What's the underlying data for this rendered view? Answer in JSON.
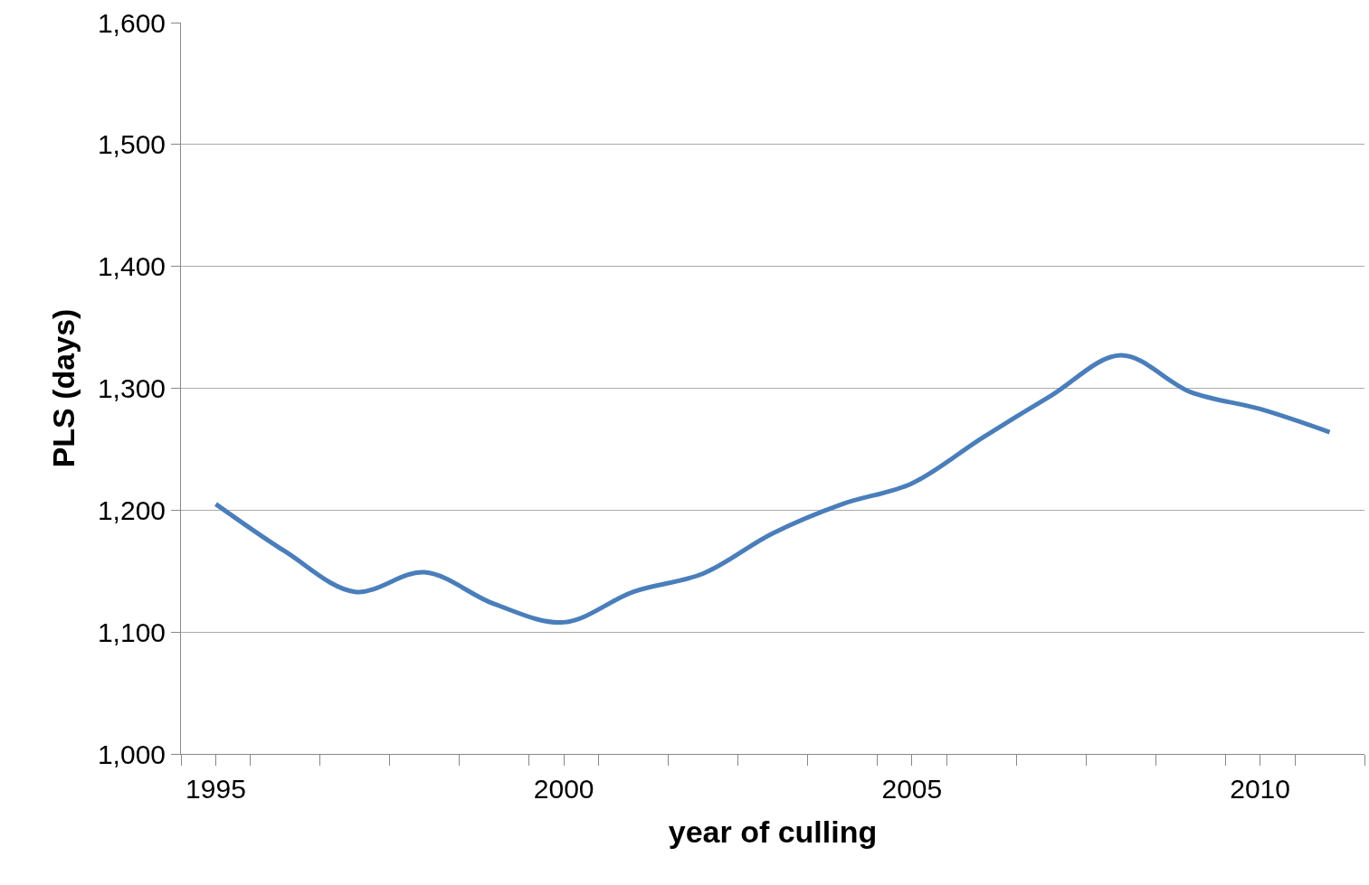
{
  "chart_data": {
    "type": "line",
    "xlabel": "year of culling",
    "ylabel": "PLS (days)",
    "x": [
      1995,
      1996,
      1997,
      1998,
      1999,
      2000,
      2001,
      2002,
      2003,
      2004,
      2005,
      2006,
      2007,
      2008,
      2009,
      2010,
      2011
    ],
    "series": [
      {
        "color": "#4a7ebb",
        "values": [
          1205,
          1166,
          1133,
          1149,
          1123,
          1108,
          1133,
          1148,
          1181,
          1205,
          1222,
          1259,
          1294,
          1327,
          1297,
          1283,
          1264
        ]
      }
    ],
    "xlim": [
      1994.5,
      2011.5
    ],
    "xticks": [
      {
        "value": 1994.5,
        "label": null
      },
      {
        "value": 1995,
        "label": "1995"
      },
      {
        "value": 1995.5,
        "label": null
      },
      {
        "value": 1996.5,
        "label": null
      },
      {
        "value": 1997.5,
        "label": null
      },
      {
        "value": 1998.5,
        "label": null
      },
      {
        "value": 1999.5,
        "label": null
      },
      {
        "value": 2000,
        "label": "2000"
      },
      {
        "value": 2000.5,
        "label": null
      },
      {
        "value": 2001.5,
        "label": null
      },
      {
        "value": 2002.5,
        "label": null
      },
      {
        "value": 2003.5,
        "label": null
      },
      {
        "value": 2004.5,
        "label": null
      },
      {
        "value": 2005,
        "label": "2005"
      },
      {
        "value": 2005.5,
        "label": null
      },
      {
        "value": 2006.5,
        "label": null
      },
      {
        "value": 2007.5,
        "label": null
      },
      {
        "value": 2008.5,
        "label": null
      },
      {
        "value": 2009.5,
        "label": null
      },
      {
        "value": 2010,
        "label": "2010"
      },
      {
        "value": 2010.5,
        "label": null
      },
      {
        "value": 2011.5,
        "label": null
      }
    ],
    "ylim": [
      1000,
      1600
    ],
    "yticks": [
      {
        "value": 1000,
        "label": "1,000"
      },
      {
        "value": 1100,
        "label": "1,100"
      },
      {
        "value": 1200,
        "label": "1,200"
      },
      {
        "value": 1300,
        "label": "1,300"
      },
      {
        "value": 1400,
        "label": "1,400"
      },
      {
        "value": 1500,
        "label": "1,500"
      },
      {
        "value": 1600,
        "label": "1,600"
      }
    ],
    "grid": "y",
    "marker": "none",
    "line_style": "solid"
  }
}
